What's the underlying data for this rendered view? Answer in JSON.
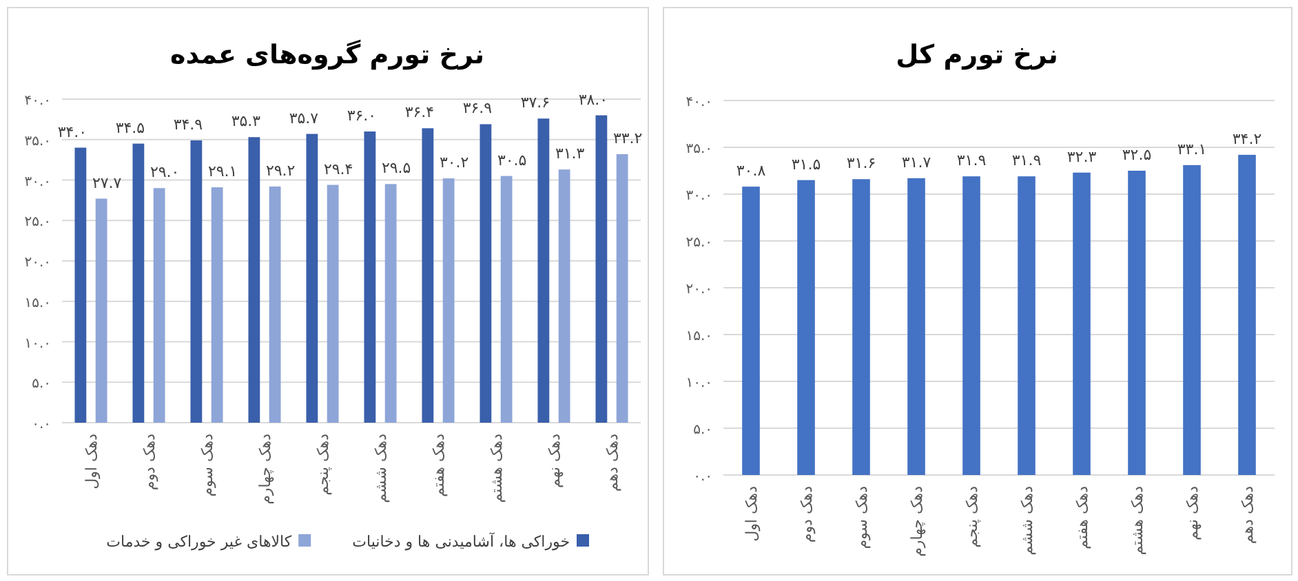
{
  "chart_data": [
    {
      "type": "bar",
      "title": "نرخ تورم گروه‌های عمده",
      "categories": [
        "دهک اول",
        "دهک دوم",
        "دهک سوم",
        "دهک چهارم",
        "دهک پنجم",
        "دهک ششم",
        "دهک هفتم",
        "دهک هشتم",
        "دهک نهم",
        "دهک دهم"
      ],
      "series": [
        {
          "name": "خوراکی ها، آشامیدنی ها و دخانیات",
          "color": "#3a5fab",
          "values": [
            34.0,
            34.5,
            34.9,
            35.3,
            35.7,
            36.0,
            36.4,
            36.9,
            37.6,
            38.0
          ],
          "value_labels": [
            "۳۴.۰",
            "۳۴.۵",
            "۳۴.۹",
            "۳۵.۳",
            "۳۵.۷",
            "۳۶.۰",
            "۳۶.۴",
            "۳۶.۹",
            "۳۷.۶",
            "۳۸.۰"
          ]
        },
        {
          "name": "کالاهای غیر خوراکی و خدمات",
          "color": "#8ea5d8",
          "values": [
            27.7,
            29.0,
            29.1,
            29.2,
            29.4,
            29.5,
            30.2,
            30.5,
            31.3,
            33.2
          ],
          "value_labels": [
            "۲۷.۷",
            "۲۹.۰",
            "۲۹.۱",
            "۲۹.۲",
            "۲۹.۴",
            "۲۹.۵",
            "۳۰.۲",
            "۳۰.۵",
            "۳۱.۳",
            "۳۳.۲"
          ]
        }
      ],
      "ylim": [
        0,
        40
      ],
      "yticks": [
        {
          "value": 0,
          "label": "۰.۰"
        },
        {
          "value": 5,
          "label": "۵.۰"
        },
        {
          "value": 10,
          "label": "۱۰.۰"
        },
        {
          "value": 15,
          "label": "۱۵.۰"
        },
        {
          "value": 20,
          "label": "۲۰.۰"
        },
        {
          "value": 25,
          "label": "۲۵.۰"
        },
        {
          "value": 30,
          "label": "۳۰.۰"
        },
        {
          "value": 35,
          "label": "۳۵.۰"
        },
        {
          "value": 40,
          "label": "۴۰.۰"
        }
      ],
      "grid": "y",
      "legend": "bottom"
    },
    {
      "type": "bar",
      "title": "نرخ تورم کل",
      "categories": [
        "دهک اول",
        "دهک دوم",
        "دهک سوم",
        "دهک چهارم",
        "دهک پنجم",
        "دهک ششم",
        "دهک هفتم",
        "دهک هشتم",
        "دهک نهم",
        "دهک دهم"
      ],
      "color": "#4472c4",
      "values": [
        30.8,
        31.5,
        31.6,
        31.7,
        31.9,
        31.9,
        32.3,
        32.5,
        33.1,
        34.2
      ],
      "value_labels": [
        "۳۰.۸",
        "۳۱.۵",
        "۳۱.۶",
        "۳۱.۷",
        "۳۱.۹",
        "۳۱.۹",
        "۳۲.۳",
        "۳۲.۵",
        "۳۳.۱",
        "۳۴.۲"
      ],
      "ylim": [
        0,
        40
      ],
      "yticks": [
        {
          "value": 0,
          "label": "۰.۰"
        },
        {
          "value": 5,
          "label": "۵.۰"
        },
        {
          "value": 10,
          "label": "۱۰.۰"
        },
        {
          "value": 15,
          "label": "۱۵.۰"
        },
        {
          "value": 20,
          "label": "۲۰.۰"
        },
        {
          "value": 25,
          "label": "۲۵.۰"
        },
        {
          "value": 30,
          "label": "۳۰.۰"
        },
        {
          "value": 35,
          "label": "۳۵.۰"
        },
        {
          "value": 40,
          "label": "۴۰.۰"
        }
      ],
      "grid": "y"
    }
  ]
}
